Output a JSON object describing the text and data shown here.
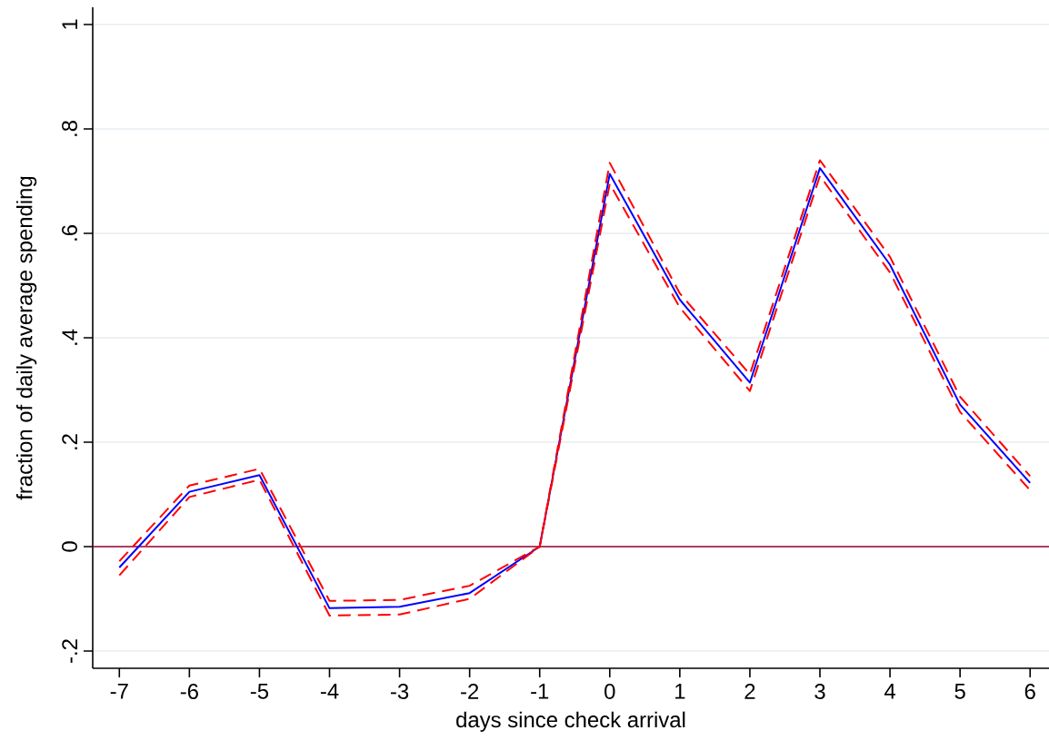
{
  "chart_data": {
    "type": "line",
    "xlabel": "days since check arrival",
    "ylabel": "fraction of daily average spending",
    "x": [
      -7,
      -6,
      -5,
      -4,
      -3,
      -2,
      -1,
      0,
      1,
      2,
      3,
      4,
      5,
      6
    ],
    "series": [
      {
        "color": "#0000ff",
        "line_style": "solid",
        "values": [
          -0.04,
          0.105,
          0.137,
          -0.118,
          -0.115,
          -0.089,
          0,
          0.714,
          0.473,
          0.314,
          0.725,
          0.54,
          0.272,
          0.122
        ]
      },
      {
        "color": "#ff0000",
        "line_style": "dashed",
        "values": [
          -0.028,
          0.117,
          0.149,
          -0.104,
          -0.102,
          -0.075,
          0,
          0.735,
          0.485,
          0.33,
          0.74,
          0.555,
          0.287,
          0.135
        ]
      },
      {
        "color": "#ff0000",
        "line_style": "dashed",
        "values": [
          -0.055,
          0.095,
          0.128,
          -0.132,
          -0.13,
          -0.1,
          0,
          0.695,
          0.458,
          0.298,
          0.71,
          0.525,
          0.258,
          0.108
        ]
      }
    ],
    "xlim": [
      -7.38,
      6.27
    ],
    "ylim": [
      -0.233,
      1.033
    ],
    "xticks": [
      -7,
      -6,
      -5,
      -4,
      -3,
      -2,
      -1,
      0,
      1,
      2,
      3,
      4,
      5,
      6
    ],
    "yticks": [
      {
        "value": -0.2,
        "label": "-.2"
      },
      0,
      {
        "value": 0.2,
        "label": ".2"
      },
      {
        "value": 0.4,
        "label": ".4"
      },
      {
        "value": 0.6,
        "label": ".6"
      },
      {
        "value": 0.8,
        "label": ".8"
      },
      1
    ],
    "grid": "y",
    "ref_lines": [
      {
        "axis": "y",
        "value": 0,
        "color": "#990033"
      }
    ]
  }
}
